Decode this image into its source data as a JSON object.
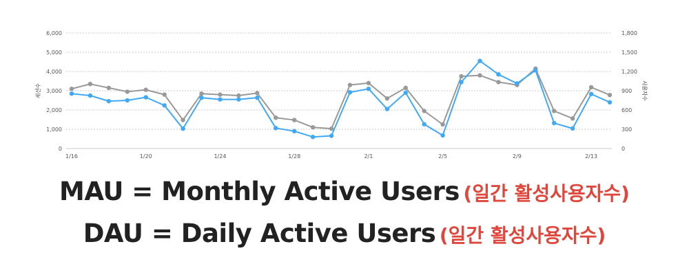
{
  "chart_data": {
    "type": "line",
    "title": "",
    "xlabel": "",
    "ylabel": "세션수",
    "y2label": "사용자수",
    "x": [
      "1/16",
      "1/17",
      "1/18",
      "1/19",
      "1/20",
      "1/21",
      "1/22",
      "1/23",
      "1/24",
      "1/25",
      "1/26",
      "1/27",
      "1/28",
      "1/29",
      "1/30",
      "1/31",
      "2/1",
      "2/2",
      "2/3",
      "2/4",
      "2/5",
      "2/6",
      "2/7",
      "2/8",
      "2/9",
      "2/10",
      "2/11",
      "2/12",
      "2/13",
      "2/14"
    ],
    "x_tick_labels": [
      "1/16",
      "1/20",
      "1/24",
      "1/28",
      "2/1",
      "2/5",
      "2/9",
      "2/13"
    ],
    "ylim": [
      0,
      6000
    ],
    "y_ticks": [
      "0",
      "1,000",
      "2,000",
      "3,000",
      "4,000",
      "5,000",
      "6,000"
    ],
    "y2lim": [
      0,
      1800
    ],
    "y2_ticks": [
      "0",
      "300",
      "600",
      "900",
      "1,200",
      "1,500",
      "1,800"
    ],
    "grid": "horizontal dashed",
    "series": [
      {
        "color": "#999999",
        "values": [
          3100,
          3350,
          3150,
          2950,
          3050,
          2800,
          1480,
          2850,
          2800,
          2750,
          2880,
          1600,
          1480,
          1100,
          1030,
          3300,
          3400,
          2600,
          3150,
          1950,
          1250,
          3750,
          3800,
          3450,
          3300,
          4150,
          1950,
          1560,
          3180,
          2780
        ]
      },
      {
        "color": "#3fa9f5",
        "values": [
          2850,
          2750,
          2460,
          2500,
          2660,
          2240,
          1030,
          2640,
          2550,
          2550,
          2640,
          1060,
          900,
          600,
          660,
          2920,
          3100,
          2050,
          2900,
          1260,
          680,
          3450,
          4550,
          3850,
          3380,
          4060,
          1320,
          1040,
          2830,
          2400
        ]
      }
    ]
  },
  "captions": [
    {
      "main": "MAU = Monthly Active Users",
      "sub": "(일간 활성사용자수)"
    },
    {
      "main": "DAU = Daily Active Users",
      "sub": "(일간 활성사용자수)"
    }
  ]
}
